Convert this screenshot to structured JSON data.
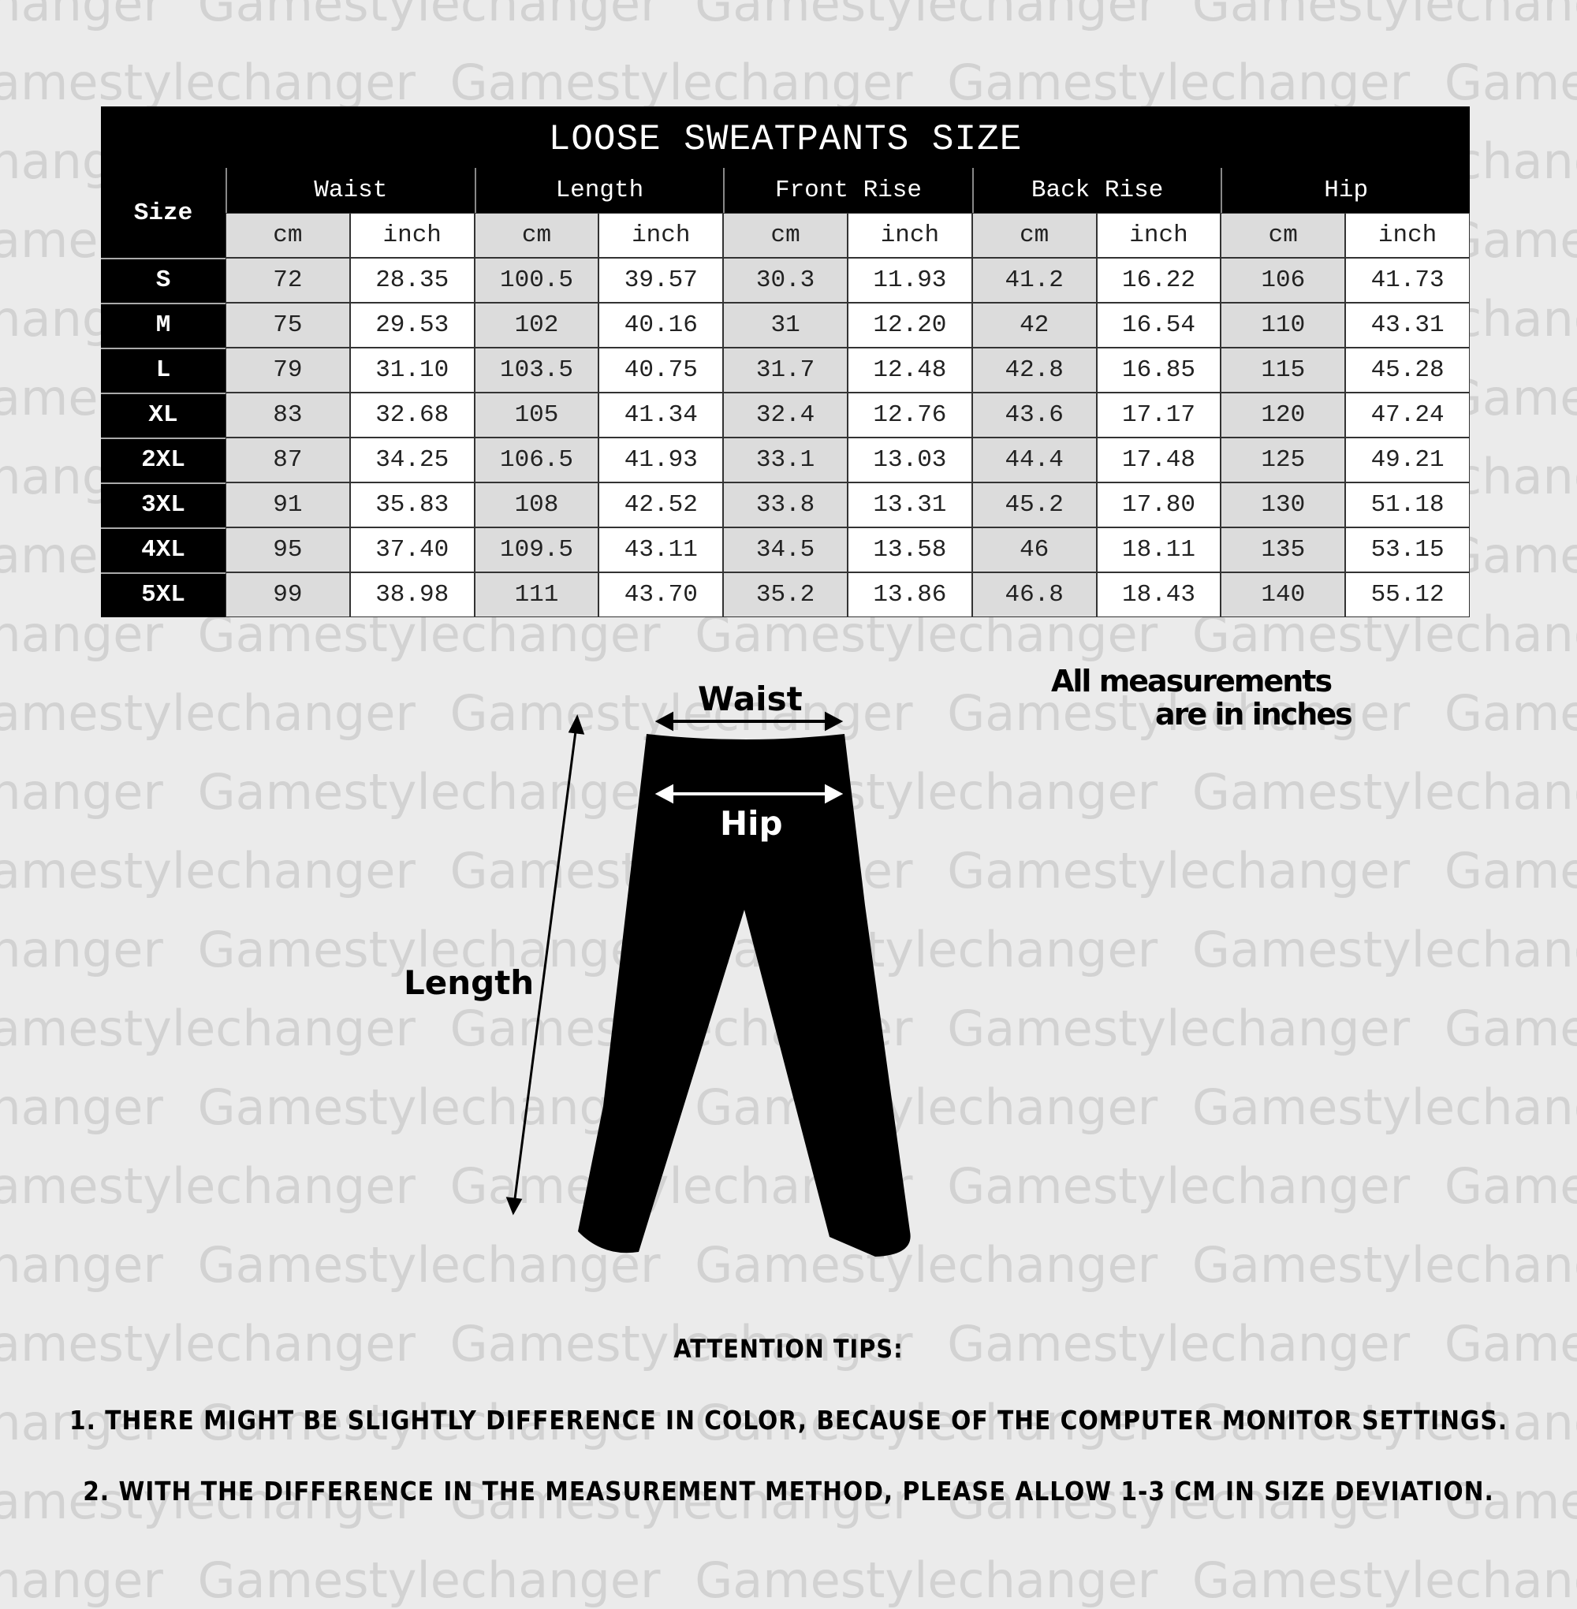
{
  "watermark": "Gamestylechanger",
  "size_chart": {
    "title": "LOOSE SWEATPANTS SIZE",
    "size_header": "Size",
    "groups": [
      "Waist",
      "Length",
      "Front Rise",
      "Back Rise",
      "Hip"
    ],
    "units": [
      "cm",
      "inch"
    ],
    "rows": [
      {
        "size": "S",
        "values": [
          "72",
          "28.35",
          "100.5",
          "39.57",
          "30.3",
          "11.93",
          "41.2",
          "16.22",
          "106",
          "41.73"
        ]
      },
      {
        "size": "M",
        "values": [
          "75",
          "29.53",
          "102",
          "40.16",
          "31",
          "12.20",
          "42",
          "16.54",
          "110",
          "43.31"
        ]
      },
      {
        "size": "L",
        "values": [
          "79",
          "31.10",
          "103.5",
          "40.75",
          "31.7",
          "12.48",
          "42.8",
          "16.85",
          "115",
          "45.28"
        ]
      },
      {
        "size": "XL",
        "values": [
          "83",
          "32.68",
          "105",
          "41.34",
          "32.4",
          "12.76",
          "43.6",
          "17.17",
          "120",
          "47.24"
        ]
      },
      {
        "size": "2XL",
        "values": [
          "87",
          "34.25",
          "106.5",
          "41.93",
          "33.1",
          "13.03",
          "44.4",
          "17.48",
          "125",
          "49.21"
        ]
      },
      {
        "size": "3XL",
        "values": [
          "91",
          "35.83",
          "108",
          "42.52",
          "33.8",
          "13.31",
          "45.2",
          "17.80",
          "130",
          "51.18"
        ]
      },
      {
        "size": "4XL",
        "values": [
          "95",
          "37.40",
          "109.5",
          "43.11",
          "34.5",
          "13.58",
          "46",
          "18.11",
          "135",
          "53.15"
        ]
      },
      {
        "size": "5XL",
        "values": [
          "99",
          "38.98",
          "111",
          "43.70",
          "35.2",
          "13.86",
          "46.8",
          "18.43",
          "140",
          "55.12"
        ]
      }
    ]
  },
  "diagram": {
    "waist_label": "Waist",
    "hip_label": "Hip",
    "length_label": "Length",
    "note_line1": "All measurements",
    "note_line2": "are in inches"
  },
  "tips": {
    "heading": "ATTENTION TIPS:",
    "items": [
      "1. THERE MIGHT BE SLIGHTLY DIFFERENCE IN COLOR, BECAUSE OF THE COMPUTER MONITOR SETTINGS.",
      "2. WITH THE DIFFERENCE IN THE MEASUREMENT METHOD, PLEASE ALLOW 1-3 CM IN SIZE DEVIATION."
    ]
  }
}
